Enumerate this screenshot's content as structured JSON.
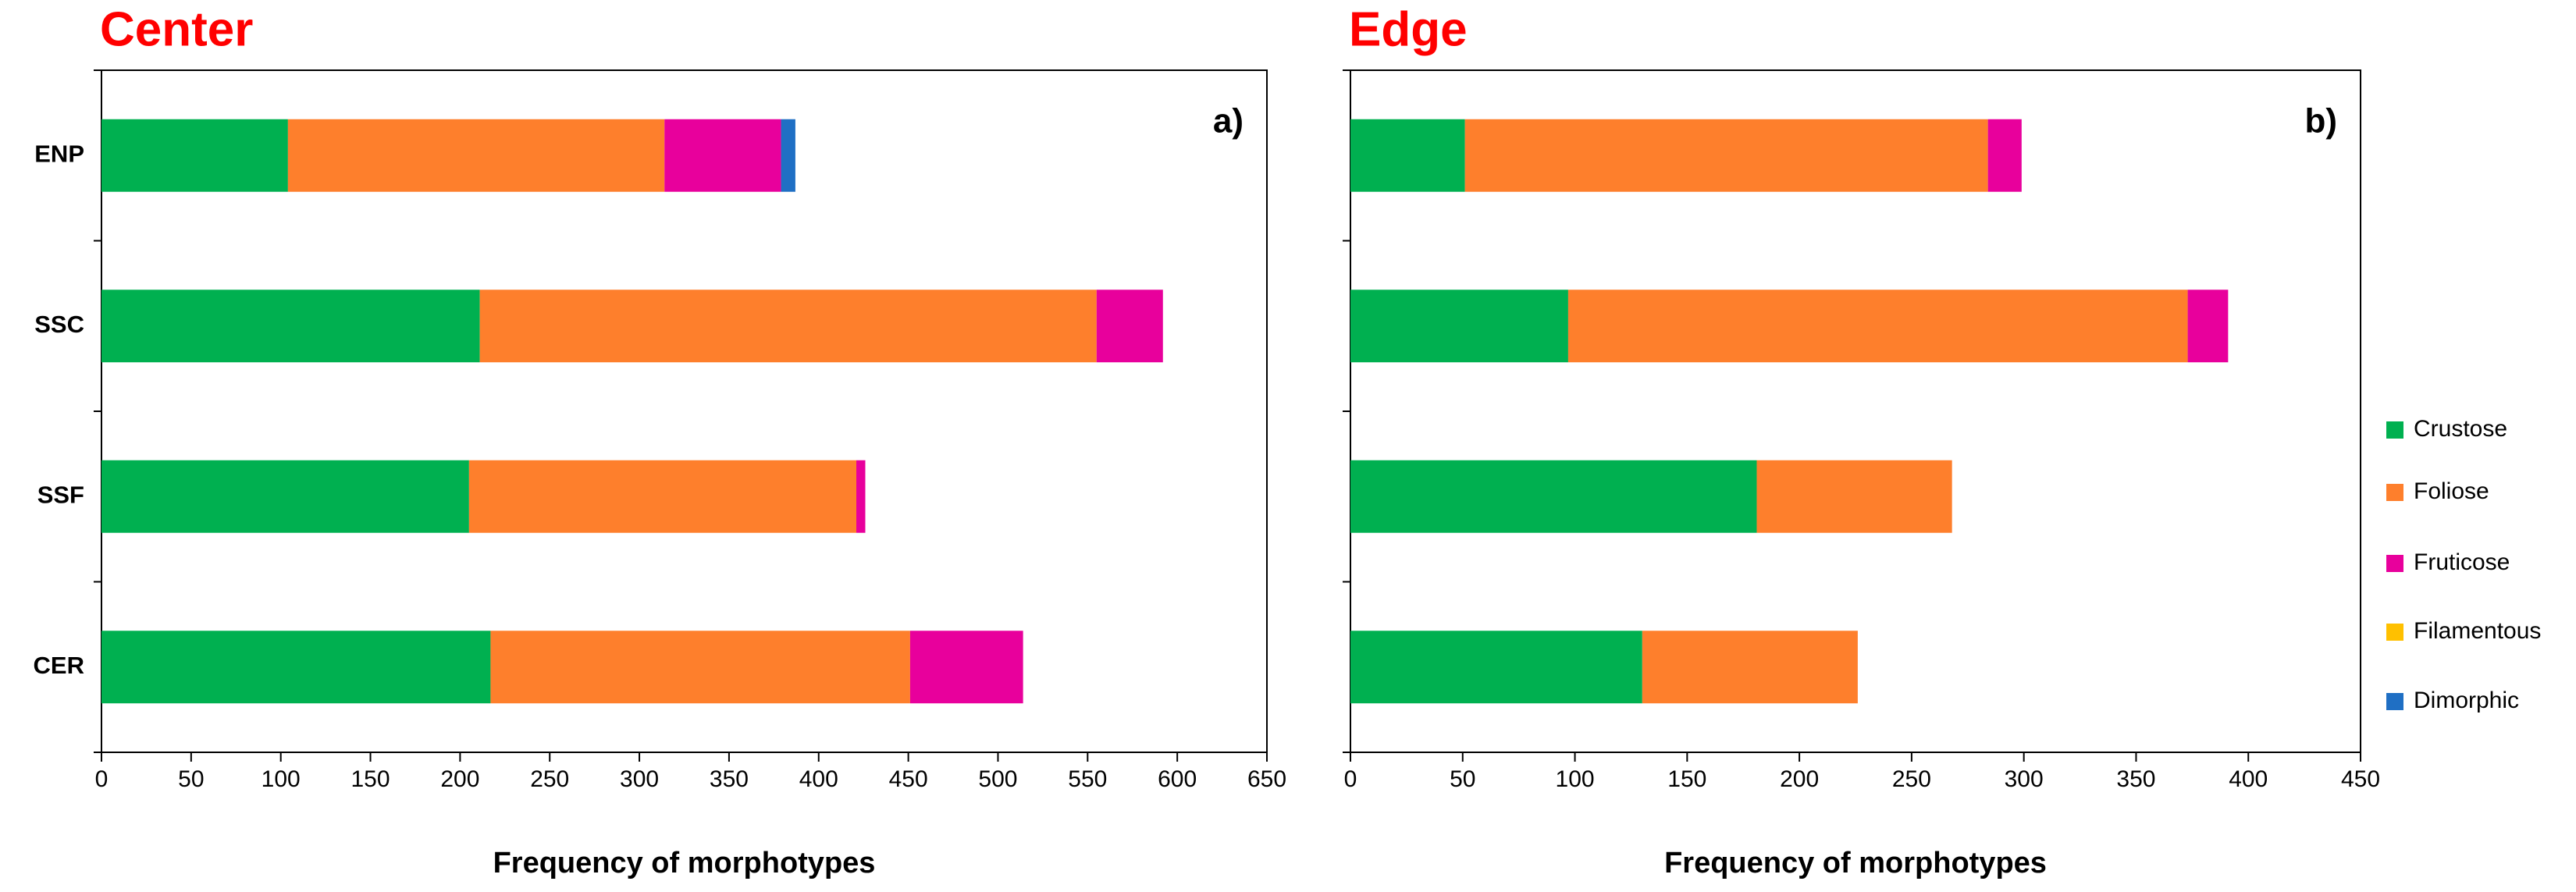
{
  "chart_data": [
    {
      "type": "stacked-bar-horizontal",
      "title": "Center",
      "panel_label": "a)",
      "xlabel": "Frequency of morphotypes",
      "categories": [
        "ENP",
        "SSC",
        "SSF",
        "CER"
      ],
      "series": [
        {
          "name": "Crustose",
          "color": "#00b050",
          "values": [
            104,
            211,
            205,
            217
          ]
        },
        {
          "name": "Foliose",
          "color": "#fe7f2c",
          "values": [
            210,
            344,
            216,
            234
          ]
        },
        {
          "name": "Fruticose",
          "color": "#e8009c",
          "values": [
            65,
            37,
            5,
            63
          ]
        },
        {
          "name": "Filamentous",
          "color": "#ffc000",
          "values": [
            0,
            0,
            0,
            0
          ]
        },
        {
          "name": "Dimorphic",
          "color": "#1f6fc4",
          "values": [
            8,
            0,
            0,
            0
          ]
        }
      ],
      "xlim": [
        0,
        650
      ],
      "xticks": [
        0,
        50,
        100,
        150,
        200,
        250,
        300,
        350,
        400,
        450,
        500,
        550,
        600,
        650
      ]
    },
    {
      "type": "stacked-bar-horizontal",
      "title": "Edge",
      "panel_label": "b)",
      "xlabel": "Frequency of morphotypes",
      "categories": [
        "ENP",
        "SSC",
        "SSF",
        "CER"
      ],
      "series": [
        {
          "name": "Crustose",
          "color": "#00b050",
          "values": [
            51,
            97,
            181,
            130
          ]
        },
        {
          "name": "Foliose",
          "color": "#fe7f2c",
          "values": [
            233,
            276,
            87,
            96
          ]
        },
        {
          "name": "Fruticose",
          "color": "#e8009c",
          "values": [
            15,
            18,
            0,
            0
          ]
        },
        {
          "name": "Filamentous",
          "color": "#ffc000",
          "values": [
            0,
            0,
            0,
            0
          ]
        },
        {
          "name": "Dimorphic",
          "color": "#1f6fc4",
          "values": [
            0,
            0,
            0,
            0
          ]
        }
      ],
      "xlim": [
        0,
        450
      ],
      "xticks": [
        0,
        50,
        100,
        150,
        200,
        250,
        300,
        350,
        400,
        450
      ],
      "legend": "right"
    }
  ]
}
